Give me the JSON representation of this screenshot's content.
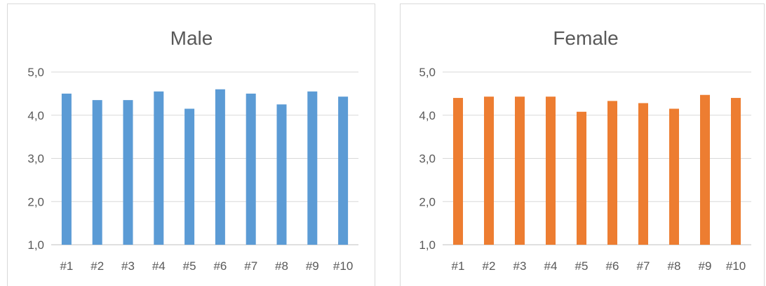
{
  "chart_data": [
    {
      "type": "bar",
      "title": "Male",
      "categories": [
        "#1",
        "#2",
        "#3",
        "#4",
        "#5",
        "#6",
        "#7",
        "#8",
        "#9",
        "#10"
      ],
      "values": [
        4.5,
        4.35,
        4.35,
        4.55,
        4.15,
        4.6,
        4.5,
        4.25,
        4.55,
        4.43
      ],
      "ylim": [
        1.0,
        5.0
      ],
      "yticks": [
        "1,0",
        "2,0",
        "3,0",
        "4,0",
        "5,0"
      ],
      "grid": true,
      "color": "#5B9BD5"
    },
    {
      "type": "bar",
      "title": "Female",
      "categories": [
        "#1",
        "#2",
        "#3",
        "#4",
        "#5",
        "#6",
        "#7",
        "#8",
        "#9",
        "#10"
      ],
      "values": [
        4.4,
        4.43,
        4.43,
        4.43,
        4.08,
        4.33,
        4.28,
        4.15,
        4.47,
        4.4
      ],
      "ylim": [
        1.0,
        5.0
      ],
      "yticks": [
        "1,0",
        "2,0",
        "3,0",
        "4,0",
        "5,0"
      ],
      "grid": true,
      "color": "#ED7D31"
    }
  ]
}
